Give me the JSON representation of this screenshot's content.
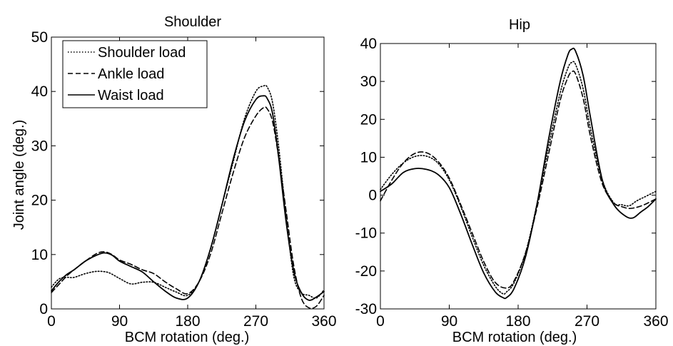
{
  "chart_data": [
    {
      "type": "line",
      "title": "Shoulder",
      "xlabel": "BCM rotation (deg.)",
      "ylabel": "Joint angle (deg.)",
      "xlim": [
        0,
        360
      ],
      "ylim": [
        0,
        50
      ],
      "xticks": [
        "0",
        "90",
        "180",
        "270",
        "360"
      ],
      "yticks": [
        "0",
        "10",
        "20",
        "30",
        "40",
        "50"
      ],
      "grid": false,
      "legend": "top-left",
      "series": [
        {
          "name": "Shoulder load",
          "dash": "dotted",
          "x": [
            0,
            10,
            20,
            30,
            45,
            60,
            75,
            90,
            105,
            120,
            135,
            150,
            165,
            180,
            195,
            210,
            225,
            240,
            255,
            270,
            280,
            285,
            292,
            300,
            310,
            320,
            330,
            340,
            350,
            360
          ],
          "y": [
            4.0,
            5.5,
            5.8,
            5.8,
            6.5,
            6.9,
            6.7,
            5.6,
            4.6,
            4.9,
            4.9,
            4.0,
            3.1,
            2.5,
            5.0,
            11.0,
            19.0,
            27.0,
            35.0,
            40.0,
            41.0,
            40.8,
            38.0,
            30.0,
            17.0,
            6.0,
            3.0,
            2.5,
            2.0,
            3.5
          ]
        },
        {
          "name": "Ankle load",
          "dash": "dashed",
          "x": [
            0,
            10,
            20,
            30,
            45,
            60,
            70,
            80,
            90,
            105,
            120,
            135,
            150,
            165,
            180,
            195,
            210,
            225,
            240,
            255,
            270,
            280,
            285,
            292,
            300,
            310,
            320,
            330,
            340,
            350,
            360
          ],
          "y": [
            3.0,
            4.5,
            6.0,
            7.2,
            8.8,
            10.2,
            10.5,
            10.0,
            9.0,
            8.2,
            7.2,
            6.5,
            5.0,
            3.7,
            2.8,
            5.0,
            10.0,
            17.5,
            25.0,
            31.5,
            35.5,
            37.0,
            36.8,
            34.5,
            28.0,
            18.0,
            8.0,
            2.0,
            0.2,
            0.5,
            2.5
          ]
        },
        {
          "name": "Waist load",
          "dash": "solid",
          "x": [
            0,
            10,
            20,
            30,
            45,
            60,
            70,
            80,
            90,
            105,
            120,
            135,
            150,
            165,
            180,
            195,
            210,
            225,
            240,
            255,
            270,
            280,
            285,
            292,
            300,
            310,
            320,
            330,
            340,
            350,
            360
          ],
          "y": [
            3.3,
            5.0,
            6.3,
            7.2,
            8.8,
            9.9,
            10.3,
            9.9,
            8.8,
            7.8,
            6.8,
            5.0,
            3.3,
            2.0,
            2.0,
            5.0,
            11.0,
            19.0,
            27.5,
            34.5,
            38.5,
            39.2,
            38.7,
            36.0,
            28.0,
            16.0,
            7.0,
            3.0,
            1.6,
            2.2,
            3.2
          ]
        }
      ]
    },
    {
      "type": "line",
      "title": "Hip",
      "xlabel": "BCM rotation (deg.)",
      "ylabel": "",
      "xlim": [
        0,
        360
      ],
      "ylim": [
        -30,
        40
      ],
      "xticks": [
        "0",
        "90",
        "180",
        "270",
        "360"
      ],
      "yticks": [
        "-30",
        "-20",
        "-10",
        "0",
        "10",
        "20",
        "30",
        "40"
      ],
      "grid": false,
      "legend": "",
      "series": [
        {
          "name": "Shoulder load",
          "dash": "dotted",
          "x": [
            0,
            15,
            30,
            45,
            60,
            75,
            90,
            105,
            120,
            135,
            150,
            160,
            165,
            175,
            190,
            205,
            220,
            235,
            245,
            250,
            255,
            265,
            275,
            290,
            305,
            315,
            325,
            335,
            345,
            360
          ],
          "y": [
            1.5,
            5.5,
            8.5,
            10.2,
            10.3,
            8.5,
            4.0,
            -3.0,
            -11.0,
            -18.5,
            -24.0,
            -26.0,
            -25.5,
            -23.0,
            -15.0,
            -2.0,
            13.0,
            27.0,
            33.5,
            35.0,
            34.5,
            28.0,
            17.0,
            4.0,
            -2.0,
            -2.5,
            -2.8,
            -1.5,
            -0.5,
            1.0
          ]
        },
        {
          "name": "Ankle load",
          "dash": "dashed",
          "x": [
            0,
            15,
            30,
            45,
            60,
            75,
            90,
            105,
            120,
            135,
            150,
            165,
            175,
            190,
            205,
            220,
            235,
            245,
            250,
            255,
            265,
            275,
            290,
            305,
            315,
            325,
            335,
            345,
            360
          ],
          "y": [
            -1.5,
            4.0,
            8.5,
            11.0,
            11.2,
            9.0,
            4.5,
            -2.5,
            -10.0,
            -17.5,
            -23.0,
            -24.5,
            -22.5,
            -15.0,
            -3.0,
            11.0,
            25.0,
            31.0,
            32.5,
            32.0,
            25.5,
            15.0,
            3.0,
            -2.0,
            -3.0,
            -3.5,
            -3.2,
            -2.5,
            -1.0
          ]
        },
        {
          "name": "Waist load",
          "dash": "solid",
          "x": [
            0,
            15,
            30,
            45,
            60,
            75,
            90,
            105,
            120,
            135,
            150,
            160,
            165,
            175,
            190,
            205,
            220,
            235,
            245,
            250,
            255,
            265,
            275,
            290,
            305,
            320,
            330,
            340,
            350,
            360
          ],
          "y": [
            1.0,
            3.0,
            6.0,
            7.0,
            6.8,
            5.5,
            2.0,
            -5.0,
            -13.0,
            -20.5,
            -25.5,
            -27.0,
            -27.0,
            -24.5,
            -16.0,
            -2.0,
            15.0,
            30.0,
            37.0,
            38.5,
            38.0,
            31.5,
            20.0,
            4.0,
            -2.5,
            -5.5,
            -6.0,
            -4.5,
            -3.0,
            -1.0
          ]
        }
      ]
    }
  ]
}
